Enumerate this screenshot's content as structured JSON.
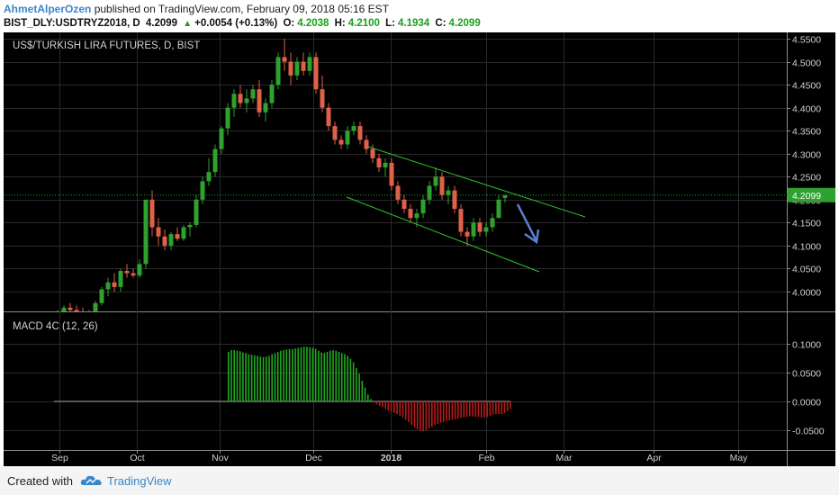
{
  "header": {
    "author": "AhmetAlperOzen",
    "published_text": "published on TradingView.com, February 09, 2018 05:16 EST",
    "symbol": "BIST_DLY:USDTRYZ2018, D",
    "last": "4.2099",
    "change_arrow": "▲",
    "change": "+0.0054 (+0.13%)",
    "o_label": "O:",
    "o_value": "4.2038",
    "h_label": "H:",
    "h_value": "4.2100",
    "l_label": "L:",
    "l_value": "4.1934",
    "c_label": "C:",
    "c_value": "4.2099"
  },
  "footer": {
    "created_with": "Created with",
    "brand": "TradingView",
    "logo_icon": "tradingview-cloud-icon"
  },
  "colors": {
    "up": "#2ea12e",
    "down": "#e0604a",
    "macd_up": "#22a822",
    "macd_down": "#b81a1a",
    "channel": "#2fbf2f",
    "arrow": "#5b7fcf",
    "price_line": "#2ea12e"
  },
  "chart_data": [
    {
      "type": "candlestick",
      "title": "US$/TURKISH LIRA FUTURES, D, BIST",
      "x_tick_labels": [
        "Sep",
        "Oct",
        "Nov",
        "Dec",
        "2018",
        "Feb",
        "Mar",
        "Apr",
        "May"
      ],
      "y_tick_labels": [
        "4.5500",
        "4.5000",
        "4.4500",
        "4.4000",
        "4.3500",
        "4.3000",
        "4.2500",
        "4.2000",
        "4.1500",
        "4.1000",
        "4.0500",
        "4.0000"
      ],
      "ylim": [
        3.955,
        4.565
      ],
      "last_price_label": "4.2099",
      "last_price": 4.2099,
      "grid": true,
      "ohlc": [
        [
          3.95,
          3.96,
          3.93,
          3.955
        ],
        [
          3.955,
          3.97,
          3.94,
          3.965
        ],
        [
          3.965,
          3.975,
          3.95,
          3.96
        ],
        [
          3.96,
          3.97,
          3.94,
          3.95
        ],
        [
          3.95,
          3.965,
          3.93,
          3.945
        ],
        [
          3.945,
          3.96,
          3.935,
          3.955
        ],
        [
          3.955,
          3.98,
          3.95,
          3.975
        ],
        [
          3.975,
          4.01,
          3.97,
          4.005
        ],
        [
          4.005,
          4.03,
          3.99,
          4.02
        ],
        [
          4.02,
          4.04,
          4.0,
          4.01
        ],
        [
          4.01,
          4.05,
          4.0,
          4.045
        ],
        [
          4.045,
          4.06,
          4.03,
          4.04
        ],
        [
          4.04,
          4.05,
          4.03,
          4.035
        ],
        [
          4.035,
          4.07,
          4.03,
          4.06
        ],
        [
          4.06,
          4.2,
          4.05,
          4.2
        ],
        [
          4.2,
          4.22,
          4.12,
          4.14
        ],
        [
          4.14,
          4.16,
          4.1,
          4.12
        ],
        [
          4.12,
          4.135,
          4.09,
          4.1
        ],
        [
          4.1,
          4.13,
          4.09,
          4.125
        ],
        [
          4.125,
          4.14,
          4.11,
          4.115
        ],
        [
          4.115,
          4.145,
          4.11,
          4.14
        ],
        [
          4.14,
          4.15,
          4.12,
          4.145
        ],
        [
          4.145,
          4.21,
          4.14,
          4.2
        ],
        [
          4.2,
          4.25,
          4.19,
          4.24
        ],
        [
          4.24,
          4.29,
          4.23,
          4.26
        ],
        [
          4.26,
          4.32,
          4.25,
          4.31
        ],
        [
          4.31,
          4.36,
          4.3,
          4.355
        ],
        [
          4.355,
          4.41,
          4.34,
          4.4
        ],
        [
          4.4,
          4.44,
          4.38,
          4.43
        ],
        [
          4.43,
          4.45,
          4.4,
          4.41
        ],
        [
          4.41,
          4.44,
          4.39,
          4.42
        ],
        [
          4.42,
          4.45,
          4.41,
          4.44
        ],
        [
          4.44,
          4.46,
          4.38,
          4.39
        ],
        [
          4.39,
          4.42,
          4.37,
          4.41
        ],
        [
          4.41,
          4.46,
          4.4,
          4.45
        ],
        [
          4.45,
          4.52,
          4.44,
          4.51
        ],
        [
          4.51,
          4.55,
          4.48,
          4.5
        ],
        [
          4.5,
          4.52,
          4.45,
          4.47
        ],
        [
          4.47,
          4.51,
          4.46,
          4.5
        ],
        [
          4.5,
          4.52,
          4.47,
          4.48
        ],
        [
          4.48,
          4.52,
          4.47,
          4.51
        ],
        [
          4.51,
          4.52,
          4.43,
          4.44
        ],
        [
          4.44,
          4.47,
          4.39,
          4.4
        ],
        [
          4.4,
          4.41,
          4.35,
          4.36
        ],
        [
          4.36,
          4.37,
          4.32,
          4.33
        ],
        [
          4.33,
          4.34,
          4.31,
          4.32
        ],
        [
          4.32,
          4.36,
          4.31,
          4.35
        ],
        [
          4.35,
          4.37,
          4.34,
          4.36
        ],
        [
          4.36,
          4.37,
          4.32,
          4.33
        ],
        [
          4.33,
          4.34,
          4.3,
          4.31
        ],
        [
          4.31,
          4.32,
          4.28,
          4.29
        ],
        [
          4.29,
          4.3,
          4.26,
          4.27
        ],
        [
          4.27,
          4.29,
          4.25,
          4.28
        ],
        [
          4.28,
          4.29,
          4.22,
          4.23
        ],
        [
          4.23,
          4.24,
          4.19,
          4.2
        ],
        [
          4.2,
          4.21,
          4.17,
          4.18
        ],
        [
          4.18,
          4.19,
          4.15,
          4.16
        ],
        [
          4.16,
          4.18,
          4.14,
          4.17
        ],
        [
          4.17,
          4.21,
          4.16,
          4.2
        ],
        [
          4.2,
          4.24,
          4.19,
          4.23
        ],
        [
          4.23,
          4.27,
          4.22,
          4.25
        ],
        [
          4.25,
          4.26,
          4.2,
          4.21
        ],
        [
          4.21,
          4.23,
          4.19,
          4.22
        ],
        [
          4.22,
          4.23,
          4.17,
          4.18
        ],
        [
          4.18,
          4.19,
          4.12,
          4.13
        ],
        [
          4.13,
          4.14,
          4.1,
          4.12
        ],
        [
          4.12,
          4.16,
          4.11,
          4.15
        ],
        [
          4.15,
          4.16,
          4.12,
          4.13
        ],
        [
          4.13,
          4.15,
          4.12,
          4.14
        ],
        [
          4.14,
          4.17,
          4.13,
          4.16
        ],
        [
          4.16,
          4.21,
          4.16,
          4.2
        ],
        [
          4.2038,
          4.21,
          4.1934,
          4.2099
        ]
      ]
    },
    {
      "type": "histogram",
      "title": "MACD 4C (12, 26)",
      "y_tick_labels": [
        "0.1000",
        "0.0500",
        "0.0000",
        "-0.0500"
      ],
      "ylim": [
        -0.06,
        0.1
      ],
      "baseline_start_bar": 0,
      "values": [
        0.0,
        0.0,
        0.0,
        0.0,
        0.0,
        0.0,
        0.0,
        0.0,
        0.0,
        0.0,
        0.0,
        0.0,
        0.0,
        0.0,
        0.0,
        0.0,
        0.0,
        0.0,
        0.0,
        0.0,
        0.0,
        0.0,
        0.0,
        0.0,
        0.0,
        0.0,
        0.0,
        0.0,
        0.0,
        0.0,
        0.0,
        0.0,
        0.0,
        0.0,
        0.0,
        0.0,
        0.0,
        0.0,
        0.0,
        0.0,
        0.0,
        0.0,
        0.0,
        0.0,
        0.0,
        0.0,
        0.0,
        0.0,
        0.0,
        0.0,
        0.0,
        0.0,
        0.0,
        0.0,
        0.0,
        0.0,
        0.0,
        0.0,
        0.0,
        0.0,
        0.086,
        0.089,
        0.089,
        0.088,
        0.087,
        0.085,
        0.084,
        0.082,
        0.081,
        0.08,
        0.079,
        0.078,
        0.077,
        0.078,
        0.079,
        0.082,
        0.084,
        0.086,
        0.088,
        0.089,
        0.09,
        0.091,
        0.091,
        0.092,
        0.093,
        0.094,
        0.095,
        0.095,
        0.094,
        0.093,
        0.091,
        0.088,
        0.085,
        0.084,
        0.086,
        0.088,
        0.089,
        0.088,
        0.086,
        0.084,
        0.082,
        0.079,
        0.074,
        0.068,
        0.058,
        0.048,
        0.036,
        0.024,
        0.012,
        0.004,
        -0.002,
        -0.005,
        -0.008,
        -0.01,
        -0.013,
        -0.016,
        -0.018,
        -0.02,
        -0.022,
        -0.025,
        -0.028,
        -0.032,
        -0.036,
        -0.041,
        -0.045,
        -0.049,
        -0.051,
        -0.052,
        -0.05,
        -0.047,
        -0.044,
        -0.041,
        -0.039,
        -0.037,
        -0.036,
        -0.034,
        -0.033,
        -0.032,
        -0.031,
        -0.03,
        -0.029,
        -0.028,
        -0.027,
        -0.026,
        -0.026,
        -0.027,
        -0.027,
        -0.028,
        -0.028,
        -0.027,
        -0.025,
        -0.023,
        -0.022,
        -0.022,
        -0.022,
        -0.02,
        -0.017,
        -0.013
      ]
    }
  ]
}
